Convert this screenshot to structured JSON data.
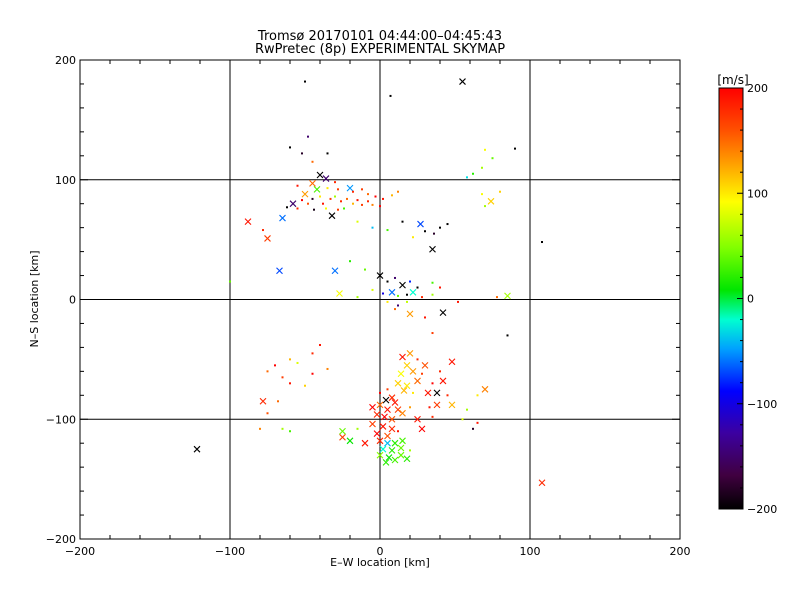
{
  "chart_data": {
    "type": "scatter",
    "title": "Tromsø 20170101 04:44:00–04:45:43",
    "subtitle": "RwPretec (8p) EXPERIMENTAL SKYMAP",
    "xlabel": "E–W location [km]",
    "ylabel": "N–S location [km]",
    "xlim": [
      -200,
      200
    ],
    "ylim": [
      -200,
      200
    ],
    "xticks": [
      -200,
      -100,
      0,
      100,
      200
    ],
    "yticks": [
      -200,
      -100,
      0,
      100,
      200
    ],
    "xtick_labels": [
      "−200",
      "−100",
      "0",
      "100",
      "200"
    ],
    "ytick_labels": [
      "−200",
      "−100",
      "0",
      "100",
      "200"
    ],
    "grid": true,
    "colorbar": {
      "label": "[m/s]",
      "range": [
        -200,
        200
      ],
      "ticks": [
        200,
        100,
        0,
        -100,
        -200
      ],
      "tick_labels": [
        "200",
        "100",
        "0",
        "−100",
        "−200"
      ],
      "colormap": "black-purple-blue-cyan-green-yellow-orange-red"
    },
    "markers": {
      "small": "dot",
      "large": "cross"
    },
    "points": [
      {
        "x": 55,
        "y": 182,
        "v": -200,
        "m": "x"
      },
      {
        "x": -50,
        "y": 182,
        "v": -200,
        "m": "d"
      },
      {
        "x": 7,
        "y": 170,
        "v": -200,
        "m": "d"
      },
      {
        "x": -48,
        "y": 136,
        "v": -150,
        "m": "d"
      },
      {
        "x": -60,
        "y": 127,
        "v": -200,
        "m": "d"
      },
      {
        "x": -52,
        "y": 122,
        "v": -180,
        "m": "d"
      },
      {
        "x": -35,
        "y": 122,
        "v": -200,
        "m": "d"
      },
      {
        "x": -45,
        "y": 115,
        "v": 150,
        "m": "d"
      },
      {
        "x": 90,
        "y": 126,
        "v": -200,
        "m": "d"
      },
      {
        "x": 70,
        "y": 125,
        "v": 90,
        "m": "d"
      },
      {
        "x": 75,
        "y": 118,
        "v": 40,
        "m": "d"
      },
      {
        "x": 68,
        "y": 110,
        "v": 60,
        "m": "d"
      },
      {
        "x": 62,
        "y": 105,
        "v": 20,
        "m": "d"
      },
      {
        "x": 58,
        "y": 102,
        "v": -30,
        "m": "d"
      },
      {
        "x": -40,
        "y": 104,
        "v": -200,
        "m": "x"
      },
      {
        "x": -36,
        "y": 101,
        "v": -150,
        "m": "x"
      },
      {
        "x": -30,
        "y": 98,
        "v": 180,
        "m": "d"
      },
      {
        "x": -45,
        "y": 97,
        "v": 150,
        "m": "x"
      },
      {
        "x": -55,
        "y": 95,
        "v": 190,
        "m": "d"
      },
      {
        "x": -42,
        "y": 92,
        "v": 30,
        "m": "x"
      },
      {
        "x": -35,
        "y": 93,
        "v": 100,
        "m": "d"
      },
      {
        "x": -28,
        "y": 92,
        "v": 170,
        "m": "d"
      },
      {
        "x": -20,
        "y": 93,
        "v": -50,
        "m": "x"
      },
      {
        "x": -18,
        "y": 90,
        "v": 180,
        "m": "d"
      },
      {
        "x": -12,
        "y": 92,
        "v": 170,
        "m": "d"
      },
      {
        "x": -8,
        "y": 88,
        "v": 150,
        "m": "d"
      },
      {
        "x": -3,
        "y": 86,
        "v": 200,
        "m": "d"
      },
      {
        "x": 2,
        "y": 84,
        "v": 190,
        "m": "d"
      },
      {
        "x": 8,
        "y": 87,
        "v": 120,
        "m": "d"
      },
      {
        "x": 12,
        "y": 90,
        "v": 140,
        "m": "d"
      },
      {
        "x": -50,
        "y": 88,
        "v": 130,
        "m": "x"
      },
      {
        "x": -52,
        "y": 83,
        "v": 200,
        "m": "d"
      },
      {
        "x": -48,
        "y": 80,
        "v": 160,
        "m": "d"
      },
      {
        "x": -45,
        "y": 84,
        "v": -180,
        "m": "d"
      },
      {
        "x": -40,
        "y": 86,
        "v": 100,
        "m": "d"
      },
      {
        "x": -38,
        "y": 80,
        "v": 190,
        "m": "d"
      },
      {
        "x": -33,
        "y": 84,
        "v": 170,
        "m": "d"
      },
      {
        "x": -30,
        "y": 86,
        "v": 60,
        "m": "d"
      },
      {
        "x": -26,
        "y": 82,
        "v": 180,
        "m": "d"
      },
      {
        "x": -22,
        "y": 84,
        "v": 150,
        "m": "d"
      },
      {
        "x": -18,
        "y": 80,
        "v": 120,
        "m": "d"
      },
      {
        "x": -15,
        "y": 83,
        "v": 190,
        "m": "d"
      },
      {
        "x": -12,
        "y": 79,
        "v": 170,
        "m": "d"
      },
      {
        "x": -8,
        "y": 82,
        "v": 180,
        "m": "d"
      },
      {
        "x": -5,
        "y": 79,
        "v": 140,
        "m": "d"
      },
      {
        "x": 0,
        "y": 78,
        "v": 200,
        "m": "d"
      },
      {
        "x": -58,
        "y": 80,
        "v": -150,
        "m": "x"
      },
      {
        "x": -62,
        "y": 77,
        "v": -200,
        "m": "d"
      },
      {
        "x": -55,
        "y": 76,
        "v": 180,
        "m": "d"
      },
      {
        "x": -44,
        "y": 75,
        "v": -190,
        "m": "d"
      },
      {
        "x": -36,
        "y": 76,
        "v": 90,
        "m": "d"
      },
      {
        "x": -28,
        "y": 75,
        "v": 170,
        "m": "d"
      },
      {
        "x": -24,
        "y": 76,
        "v": 30,
        "m": "d"
      },
      {
        "x": -32,
        "y": 70,
        "v": -200,
        "m": "x"
      },
      {
        "x": -65,
        "y": 68,
        "v": -60,
        "m": "x"
      },
      {
        "x": -88,
        "y": 65,
        "v": 190,
        "m": "x"
      },
      {
        "x": -78,
        "y": 58,
        "v": 180,
        "m": "d"
      },
      {
        "x": -75,
        "y": 51,
        "v": 170,
        "m": "x"
      },
      {
        "x": -15,
        "y": 65,
        "v": 80,
        "m": "d"
      },
      {
        "x": -5,
        "y": 60,
        "v": -40,
        "m": "d"
      },
      {
        "x": 5,
        "y": 58,
        "v": 30,
        "m": "d"
      },
      {
        "x": 15,
        "y": 65,
        "v": -200,
        "m": "d"
      },
      {
        "x": 27,
        "y": 63,
        "v": -70,
        "m": "x"
      },
      {
        "x": 30,
        "y": 57,
        "v": -200,
        "m": "d"
      },
      {
        "x": 36,
        "y": 55,
        "v": -180,
        "m": "d"
      },
      {
        "x": 40,
        "y": 60,
        "v": -200,
        "m": "d"
      },
      {
        "x": 45,
        "y": 63,
        "v": -200,
        "m": "d"
      },
      {
        "x": 22,
        "y": 52,
        "v": 100,
        "m": "d"
      },
      {
        "x": 35,
        "y": 42,
        "v": -200,
        "m": "x"
      },
      {
        "x": 108,
        "y": 48,
        "v": -200,
        "m": "d"
      },
      {
        "x": 70,
        "y": 78,
        "v": 60,
        "m": "d"
      },
      {
        "x": 74,
        "y": 82,
        "v": 110,
        "m": "x"
      },
      {
        "x": 68,
        "y": 88,
        "v": 90,
        "m": "d"
      },
      {
        "x": -67,
        "y": 24,
        "v": -70,
        "m": "x"
      },
      {
        "x": -30,
        "y": 24,
        "v": -60,
        "m": "x"
      },
      {
        "x": -20,
        "y": 32,
        "v": 20,
        "m": "d"
      },
      {
        "x": -10,
        "y": 25,
        "v": 40,
        "m": "d"
      },
      {
        "x": 0,
        "y": 20,
        "v": -200,
        "m": "x"
      },
      {
        "x": 5,
        "y": 15,
        "v": -200,
        "m": "d"
      },
      {
        "x": 10,
        "y": 18,
        "v": -150,
        "m": "d"
      },
      {
        "x": 15,
        "y": 12,
        "v": -200,
        "m": "x"
      },
      {
        "x": 20,
        "y": 15,
        "v": -80,
        "m": "d"
      },
      {
        "x": 25,
        "y": 10,
        "v": -200,
        "m": "d"
      },
      {
        "x": 35,
        "y": 14,
        "v": 30,
        "m": "d"
      },
      {
        "x": 40,
        "y": 10,
        "v": 190,
        "m": "d"
      },
      {
        "x": -5,
        "y": 8,
        "v": 80,
        "m": "d"
      },
      {
        "x": 2,
        "y": 5,
        "v": -100,
        "m": "d"
      },
      {
        "x": 8,
        "y": 6,
        "v": -60,
        "m": "x"
      },
      {
        "x": 12,
        "y": 3,
        "v": 40,
        "m": "d"
      },
      {
        "x": 18,
        "y": 4,
        "v": -200,
        "m": "d"
      },
      {
        "x": 22,
        "y": 6,
        "v": -20,
        "m": "x"
      },
      {
        "x": 28,
        "y": 2,
        "v": 180,
        "m": "d"
      },
      {
        "x": 35,
        "y": 4,
        "v": 60,
        "m": "d"
      },
      {
        "x": -15,
        "y": 2,
        "v": 60,
        "m": "d"
      },
      {
        "x": -27,
        "y": 5,
        "v": 90,
        "m": "x"
      },
      {
        "x": 5,
        "y": -2,
        "v": 100,
        "m": "d"
      },
      {
        "x": 12,
        "y": -5,
        "v": -150,
        "m": "d"
      },
      {
        "x": 18,
        "y": -2,
        "v": 70,
        "m": "d"
      },
      {
        "x": 52,
        "y": -2,
        "v": 190,
        "m": "d"
      },
      {
        "x": 78,
        "y": 2,
        "v": 150,
        "m": "d"
      },
      {
        "x": 85,
        "y": 3,
        "v": 60,
        "m": "x"
      },
      {
        "x": 10,
        "y": -8,
        "v": 150,
        "m": "d"
      },
      {
        "x": 20,
        "y": -12,
        "v": 130,
        "m": "x"
      },
      {
        "x": 30,
        "y": -15,
        "v": 190,
        "m": "d"
      },
      {
        "x": 42,
        "y": -11,
        "v": -200,
        "m": "x"
      },
      {
        "x": 85,
        "y": -30,
        "v": -200,
        "m": "d"
      },
      {
        "x": 35,
        "y": -28,
        "v": 170,
        "m": "d"
      },
      {
        "x": -40,
        "y": -38,
        "v": 190,
        "m": "d"
      },
      {
        "x": -45,
        "y": -45,
        "v": 180,
        "m": "d"
      },
      {
        "x": -55,
        "y": -53,
        "v": 80,
        "m": "d"
      },
      {
        "x": -60,
        "y": -50,
        "v": 120,
        "m": "d"
      },
      {
        "x": -70,
        "y": -55,
        "v": 200,
        "m": "d"
      },
      {
        "x": -75,
        "y": -60,
        "v": 150,
        "m": "d"
      },
      {
        "x": -65,
        "y": -65,
        "v": 170,
        "m": "d"
      },
      {
        "x": -60,
        "y": -70,
        "v": 190,
        "m": "d"
      },
      {
        "x": -50,
        "y": -72,
        "v": 110,
        "m": "d"
      },
      {
        "x": -45,
        "y": -62,
        "v": 200,
        "m": "d"
      },
      {
        "x": -35,
        "y": -58,
        "v": 140,
        "m": "d"
      },
      {
        "x": -78,
        "y": -85,
        "v": 180,
        "m": "x"
      },
      {
        "x": -68,
        "y": -85,
        "v": 150,
        "m": "d"
      },
      {
        "x": -75,
        "y": -95,
        "v": 160,
        "m": "d"
      },
      {
        "x": -80,
        "y": -108,
        "v": 140,
        "m": "d"
      },
      {
        "x": -65,
        "y": -108,
        "v": 60,
        "m": "d"
      },
      {
        "x": -60,
        "y": -110,
        "v": 30,
        "m": "d"
      },
      {
        "x": 15,
        "y": -48,
        "v": 190,
        "m": "x"
      },
      {
        "x": 20,
        "y": -45,
        "v": 130,
        "m": "x"
      },
      {
        "x": 25,
        "y": -50,
        "v": 180,
        "m": "d"
      },
      {
        "x": 30,
        "y": -55,
        "v": 160,
        "m": "x"
      },
      {
        "x": 18,
        "y": -55,
        "v": 110,
        "m": "x"
      },
      {
        "x": 22,
        "y": -60,
        "v": 130,
        "m": "x"
      },
      {
        "x": 28,
        "y": -62,
        "v": 170,
        "m": "d"
      },
      {
        "x": 14,
        "y": -62,
        "v": 90,
        "m": "x"
      },
      {
        "x": 48,
        "y": -52,
        "v": 190,
        "m": "x"
      },
      {
        "x": 40,
        "y": -60,
        "v": 180,
        "m": "d"
      },
      {
        "x": 42,
        "y": -68,
        "v": 190,
        "m": "x"
      },
      {
        "x": 35,
        "y": -70,
        "v": 200,
        "m": "d"
      },
      {
        "x": 12,
        "y": -70,
        "v": 110,
        "m": "x"
      },
      {
        "x": 18,
        "y": -72,
        "v": 100,
        "m": "x"
      },
      {
        "x": 25,
        "y": -68,
        "v": 150,
        "m": "x"
      },
      {
        "x": 16,
        "y": -76,
        "v": 120,
        "m": "x"
      },
      {
        "x": 22,
        "y": -78,
        "v": 100,
        "m": "d"
      },
      {
        "x": 5,
        "y": -75,
        "v": 170,
        "m": "d"
      },
      {
        "x": 0,
        "y": -78,
        "v": 200,
        "m": "d"
      },
      {
        "x": 8,
        "y": -82,
        "v": 180,
        "m": "x"
      },
      {
        "x": 4,
        "y": -84,
        "v": -200,
        "m": "x"
      },
      {
        "x": 10,
        "y": -86,
        "v": 190,
        "m": "x"
      },
      {
        "x": 0,
        "y": -88,
        "v": 150,
        "m": "x"
      },
      {
        "x": -5,
        "y": -90,
        "v": 200,
        "m": "x"
      },
      {
        "x": 5,
        "y": -92,
        "v": 190,
        "m": "x"
      },
      {
        "x": 12,
        "y": -92,
        "v": 170,
        "m": "x"
      },
      {
        "x": -2,
        "y": -96,
        "v": 180,
        "m": "x"
      },
      {
        "x": 3,
        "y": -98,
        "v": 200,
        "m": "x"
      },
      {
        "x": 8,
        "y": -100,
        "v": 160,
        "m": "x"
      },
      {
        "x": 15,
        "y": -95,
        "v": 140,
        "m": "x"
      },
      {
        "x": 20,
        "y": -90,
        "v": 130,
        "m": "d"
      },
      {
        "x": 32,
        "y": -78,
        "v": 190,
        "m": "x"
      },
      {
        "x": 38,
        "y": -78,
        "v": -200,
        "m": "x"
      },
      {
        "x": 45,
        "y": -80,
        "v": 180,
        "m": "d"
      },
      {
        "x": 38,
        "y": -88,
        "v": 170,
        "m": "x"
      },
      {
        "x": 33,
        "y": -90,
        "v": 190,
        "m": "d"
      },
      {
        "x": 48,
        "y": -88,
        "v": 120,
        "m": "x"
      },
      {
        "x": 70,
        "y": -75,
        "v": 140,
        "m": "x"
      },
      {
        "x": 65,
        "y": -80,
        "v": 100,
        "m": "d"
      },
      {
        "x": 58,
        "y": -92,
        "v": 60,
        "m": "d"
      },
      {
        "x": 55,
        "y": -100,
        "v": 80,
        "m": "d"
      },
      {
        "x": 65,
        "y": -103,
        "v": 190,
        "m": "d"
      },
      {
        "x": 62,
        "y": -108,
        "v": -180,
        "m": "d"
      },
      {
        "x": 35,
        "y": -98,
        "v": 180,
        "m": "d"
      },
      {
        "x": 25,
        "y": -100,
        "v": 190,
        "m": "x"
      },
      {
        "x": 28,
        "y": -108,
        "v": 200,
        "m": "x"
      },
      {
        "x": -5,
        "y": -104,
        "v": 170,
        "m": "x"
      },
      {
        "x": 2,
        "y": -106,
        "v": 190,
        "m": "x"
      },
      {
        "x": 8,
        "y": -108,
        "v": 180,
        "m": "x"
      },
      {
        "x": -2,
        "y": -112,
        "v": 200,
        "m": "x"
      },
      {
        "x": 5,
        "y": -114,
        "v": 160,
        "m": "x"
      },
      {
        "x": 12,
        "y": -110,
        "v": 190,
        "m": "d"
      },
      {
        "x": 0,
        "y": -118,
        "v": 180,
        "m": "x"
      },
      {
        "x": -10,
        "y": -120,
        "v": 190,
        "m": "x"
      },
      {
        "x": -25,
        "y": -115,
        "v": 170,
        "m": "x"
      },
      {
        "x": -20,
        "y": -118,
        "v": 10,
        "m": "x"
      },
      {
        "x": -25,
        "y": -110,
        "v": 40,
        "m": "x"
      },
      {
        "x": -15,
        "y": -108,
        "v": 60,
        "m": "d"
      },
      {
        "x": 5,
        "y": -120,
        "v": -40,
        "m": "x"
      },
      {
        "x": 10,
        "y": -120,
        "v": 20,
        "m": "x"
      },
      {
        "x": 15,
        "y": -118,
        "v": 30,
        "m": "x"
      },
      {
        "x": 2,
        "y": -125,
        "v": -20,
        "m": "x"
      },
      {
        "x": 8,
        "y": -126,
        "v": 20,
        "m": "x"
      },
      {
        "x": 14,
        "y": -124,
        "v": 40,
        "m": "x"
      },
      {
        "x": 20,
        "y": -126,
        "v": 60,
        "m": "d"
      },
      {
        "x": 0,
        "y": -130,
        "v": 50,
        "m": "x"
      },
      {
        "x": 6,
        "y": -132,
        "v": 10,
        "m": "x"
      },
      {
        "x": 10,
        "y": -134,
        "v": 30,
        "m": "x"
      },
      {
        "x": 4,
        "y": -136,
        "v": 20,
        "m": "x"
      },
      {
        "x": 14,
        "y": -130,
        "v": 40,
        "m": "x"
      },
      {
        "x": 18,
        "y": -133,
        "v": 20,
        "m": "x"
      },
      {
        "x": -122,
        "y": -125,
        "v": -200,
        "m": "x"
      },
      {
        "x": 108,
        "y": -153,
        "v": 180,
        "m": "x"
      },
      {
        "x": -100,
        "y": 15,
        "v": 40,
        "m": "d"
      },
      {
        "x": 80,
        "y": 90,
        "v": 110,
        "m": "d"
      }
    ]
  }
}
